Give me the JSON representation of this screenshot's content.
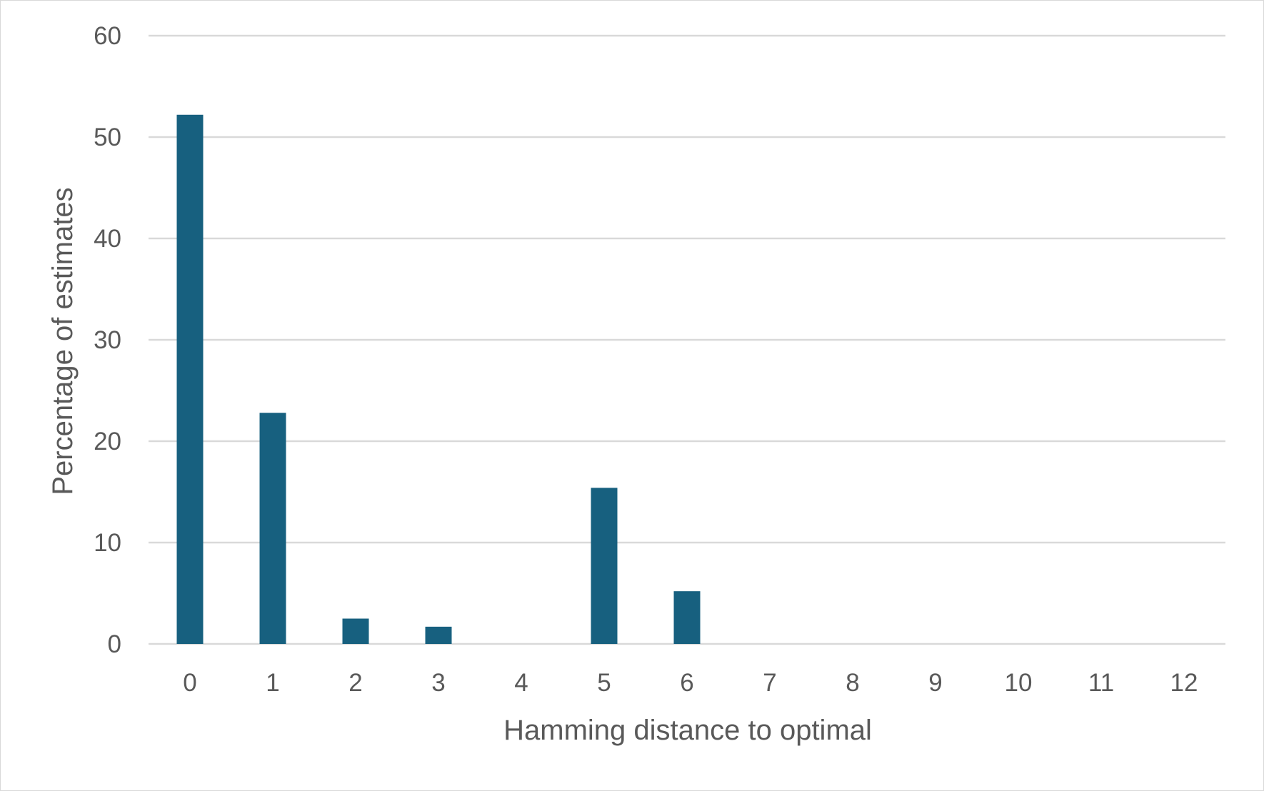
{
  "chart_data": {
    "type": "bar",
    "title": "",
    "xlabel": "Hamming distance to optimal",
    "ylabel": "Percentage of estimates",
    "categories": [
      "0",
      "1",
      "2",
      "3",
      "4",
      "5",
      "6",
      "7",
      "8",
      "9",
      "10",
      "11",
      "12"
    ],
    "series": [
      {
        "values": [
          52.2,
          22.8,
          2.5,
          1.7,
          0,
          15.4,
          5.2,
          0,
          0,
          0,
          0,
          0,
          0
        ]
      }
    ],
    "ylim": [
      0,
      60
    ],
    "yticks": [
      "0",
      "10",
      "20",
      "30",
      "40",
      "50",
      "60"
    ],
    "grid": true,
    "legend": "none",
    "colors": {
      "bar": "#17607f",
      "grid": "#d9d9d9",
      "text": "#595959"
    }
  }
}
